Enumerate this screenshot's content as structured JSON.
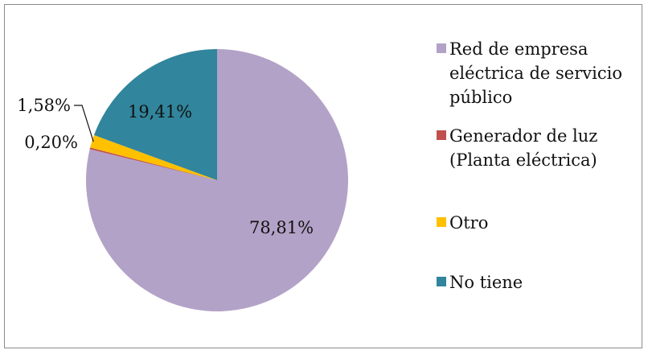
{
  "chart_data": {
    "type": "pie",
    "categories": [
      "Red de empresa eléctrica de servicio público",
      "Generador de luz (Planta eléctrica)",
      "Otro",
      "No tiene"
    ],
    "values": [
      78.81,
      0.2,
      1.58,
      19.41
    ],
    "data_labels": [
      "78,81%",
      "0,20%",
      "1,58%",
      "19,41%"
    ],
    "colors": [
      "#b3a2c7",
      "#c0504d",
      "#ffc000",
      "#31859c"
    ],
    "legend_lines": [
      [
        "Red de empresa",
        "eléctrica de servicio",
        "público"
      ],
      [
        "Generador de luz",
        "(Planta eléctrica)"
      ],
      [
        "Otro"
      ],
      [
        "No tiene"
      ]
    ],
    "legend_position": "right",
    "start_angle": "12 o'clock",
    "direction": "clockwise",
    "grid": false
  }
}
